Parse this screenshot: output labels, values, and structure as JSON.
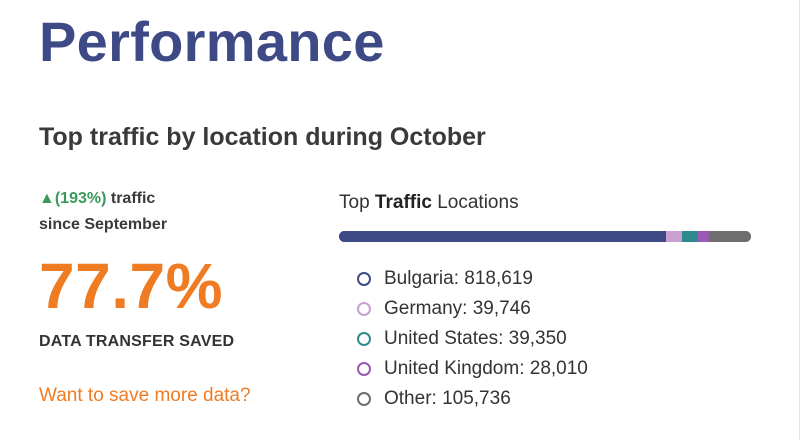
{
  "header": {
    "title": "Performance",
    "subtitle": "Top traffic by location during October"
  },
  "summary": {
    "trend_arrow": "▲",
    "trend_pct": "(193%)",
    "trend_word": " traffic",
    "trend_since": "since September",
    "saved_pct": "77.7%",
    "saved_label": "DATA TRANSFER SAVED",
    "more_link": "Want to save more data?"
  },
  "locations": {
    "heading_prefix": "Top ",
    "heading_bold": "Traffic",
    "heading_suffix": " Locations",
    "items": [
      {
        "label": "Bulgaria: 818,619",
        "value": 818619,
        "color": "#3d4a86"
      },
      {
        "label": "Germany: 39,746",
        "value": 39746,
        "color": "#c9a0d2"
      },
      {
        "label": "United States: 39,350",
        "value": 39350,
        "color": "#2f8a8e"
      },
      {
        "label": "United Kingdom: 28,010",
        "value": 28010,
        "color": "#9b59b6"
      },
      {
        "label": "Other: 105,736",
        "value": 105736,
        "color": "#6e6e6e"
      }
    ]
  },
  "colors": {
    "title": "#3d4a86",
    "accent_orange": "#ef7b22",
    "trend_green": "#3a9a5c"
  }
}
